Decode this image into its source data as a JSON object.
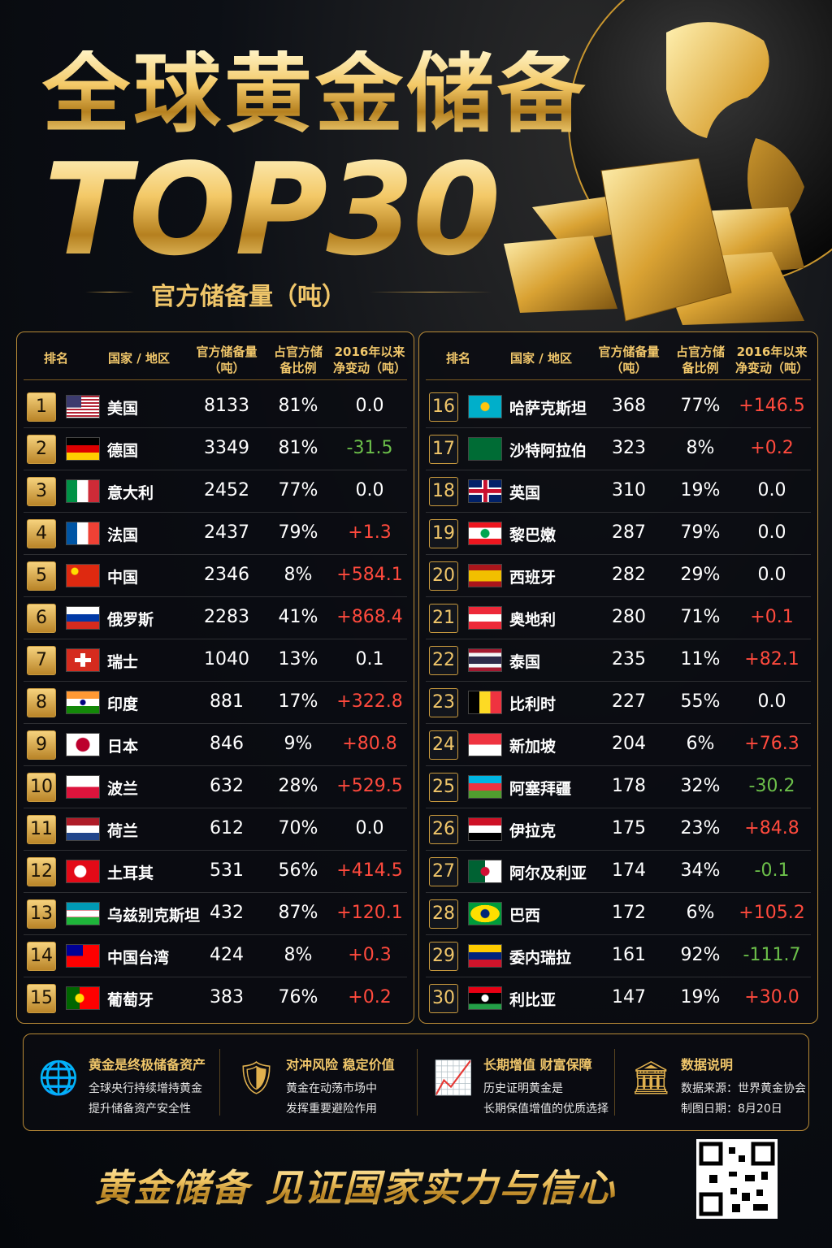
{
  "header": {
    "title": "全球黄金储备",
    "title2": "TOP30",
    "subtitle": "官方储备量（吨）"
  },
  "tables": [
    {
      "columns": [
        [
          "排名"
        ],
        [
          "国家 / 地区"
        ],
        [
          "官方储备量",
          "（吨）"
        ],
        [
          "占官方储",
          "备比例"
        ],
        [
          "2016年以来",
          "净变动（吨）"
        ]
      ],
      "rows": [
        [
          1,
          "美国",
          8133,
          "81%",
          "0.0"
        ],
        [
          2,
          "德国",
          3349,
          "81%",
          "-31.5"
        ],
        [
          3,
          "意大利",
          2452,
          "77%",
          "0.0"
        ],
        [
          4,
          "法国",
          2437,
          "79%",
          "+1.3"
        ],
        [
          5,
          "中国",
          2346,
          "8%",
          "+584.1"
        ],
        [
          6,
          "俄罗斯",
          2283,
          "41%",
          "+868.4"
        ],
        [
          7,
          "瑞士",
          1040,
          "13%",
          "0.1"
        ],
        [
          8,
          "印度",
          881,
          "17%",
          "+322.8"
        ],
        [
          9,
          "日本",
          846,
          "9%",
          "+80.8"
        ],
        [
          10,
          "波兰",
          632,
          "28%",
          "+529.5"
        ],
        [
          11,
          "荷兰",
          612,
          "70%",
          "0.0"
        ],
        [
          12,
          "土耳其",
          531,
          "56%",
          "+414.5"
        ],
        [
          13,
          "乌兹别克斯坦",
          432,
          "87%",
          "+120.1"
        ],
        [
          14,
          "中国台湾",
          424,
          "8%",
          "+0.3"
        ],
        [
          15,
          "葡萄牙",
          383,
          "76%",
          "+0.2"
        ]
      ]
    },
    {
      "columns": [
        [
          "排名"
        ],
        [
          "国家 / 地区"
        ],
        [
          "官方储备量",
          "（吨）"
        ],
        [
          "占官方储",
          "备比例"
        ],
        [
          "2016年以来",
          "净变动（吨）"
        ]
      ],
      "rows": [
        [
          16,
          "哈萨克斯坦",
          368,
          "77%",
          "+146.5"
        ],
        [
          17,
          "沙特阿拉伯",
          323,
          "8%",
          "+0.2"
        ],
        [
          18,
          "英国",
          310,
          "19%",
          "0.0"
        ],
        [
          19,
          "黎巴嫩",
          287,
          "79%",
          "0.0"
        ],
        [
          20,
          "西班牙",
          282,
          "29%",
          "0.0"
        ],
        [
          21,
          "奥地利",
          280,
          "71%",
          "+0.1"
        ],
        [
          22,
          "泰国",
          235,
          "11%",
          "+82.1"
        ],
        [
          23,
          "比利时",
          227,
          "55%",
          "0.0"
        ],
        [
          24,
          "新加坡",
          204,
          "6%",
          "+76.3"
        ],
        [
          25,
          "阿塞拜疆",
          178,
          "32%",
          "-30.2"
        ],
        [
          26,
          "伊拉克",
          175,
          "23%",
          "+84.8"
        ],
        [
          27,
          "阿尔及利亚",
          174,
          "34%",
          "-0.1"
        ],
        [
          28,
          "巴西",
          172,
          "6%",
          "+105.2"
        ],
        [
          29,
          "委内瑞拉",
          161,
          "92%",
          "-111.7"
        ],
        [
          30,
          "利比亚",
          147,
          "19%",
          "+30.0"
        ]
      ]
    }
  ],
  "features": [
    {
      "title": "黄金是终极储备资产",
      "lines": [
        "全球央行持续增持黄金",
        "提升储备资产安全性"
      ]
    },
    {
      "title": "对冲风险 稳定价值",
      "lines": [
        "黄金在动荡市场中",
        "发挥重要避险作用"
      ]
    },
    {
      "title": "长期增值 财富保障",
      "lines": [
        "历史证明黄金是",
        "长期保值增值的优质选择"
      ]
    },
    {
      "title": "数据说明",
      "lines": [
        "数据来源：世界黄金协会",
        "制图日期：8月20日"
      ]
    }
  ],
  "footer": {
    "slogan": "黄金储备 见证国家实力与信心"
  }
}
